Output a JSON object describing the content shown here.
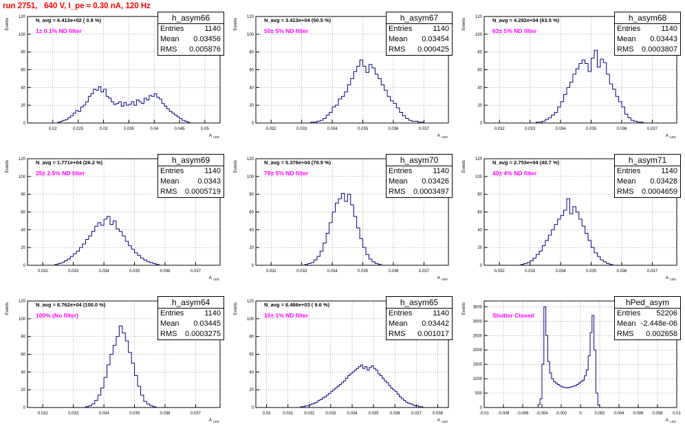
{
  "canvas_title": "run 2751,   640 V, I_pe ≈ 0.30 nA, 120 Hz",
  "colors": {
    "title": "#ff0000",
    "histogram": "#000080",
    "annotation": "#ff00ff",
    "grid": "#000000"
  },
  "stat_labels": {
    "entries": "Entries",
    "mean": "Mean",
    "rms": "RMS"
  },
  "ylabel_text": "Events",
  "xlabel_text": "A",
  "xlabel_sub": "LED",
  "chart_data": [
    {
      "type": "histogram",
      "hist_name": "h_asym66",
      "navg": "N_avg = 6.413e+02 ( 0.9 %)",
      "annotation": "1± 0.1% ND filter",
      "stats": {
        "entries": "1140",
        "mean": "0.03456",
        "rms": "0.005876"
      },
      "xlim": [
        0.015,
        0.053
      ],
      "ylim": [
        0,
        120
      ],
      "x_ticks": [
        0.02,
        0.025,
        0.03,
        0.035,
        0.04,
        0.045,
        0.05
      ],
      "x_tick_labels": [
        "0.02",
        "0.025",
        "0.03",
        "0.035",
        "0.04",
        "0.045",
        "0.05"
      ],
      "y_ticks": [
        0,
        20,
        40,
        60,
        80,
        100,
        120
      ],
      "bins": {
        "start": 0.021,
        "width": 0.0005,
        "counts": [
          1,
          2,
          3,
          4,
          6,
          8,
          11,
          14,
          13,
          18,
          20,
          24,
          30,
          33,
          38,
          37,
          41,
          35,
          38,
          30,
          28,
          24,
          21,
          22,
          24,
          19,
          23,
          20,
          21,
          24,
          20,
          26,
          24,
          22,
          28,
          26,
          31,
          30,
          33,
          29,
          27,
          22,
          19,
          16,
          13,
          11,
          9,
          7,
          5,
          3,
          2,
          1
        ]
      }
    },
    {
      "type": "histogram",
      "hist_name": "h_asym67",
      "navg": "N_avg = 3.413e+04 (50.5 %)",
      "annotation": "50± 5% ND filter",
      "stats": {
        "entries": "1140",
        "mean": "0.03454",
        "rms": "0.000425"
      },
      "xlim": [
        0.0315,
        0.0378
      ],
      "ylim": [
        0,
        120
      ],
      "x_ticks": [
        0.032,
        0.033,
        0.034,
        0.035,
        0.036,
        0.037
      ],
      "x_tick_labels": [
        "0.032",
        "0.033",
        "0.034",
        "0.035",
        "0.036",
        "0.037"
      ],
      "y_ticks": [
        0,
        20,
        40,
        60,
        80,
        100,
        120
      ],
      "bins": {
        "start": 0.0333,
        "width": 0.0001,
        "counts": [
          1,
          1,
          2,
          3,
          5,
          9,
          12,
          18,
          20,
          27,
          30,
          35,
          43,
          50,
          58,
          64,
          71,
          64,
          57,
          66,
          62,
          55,
          50,
          43,
          37,
          30,
          25,
          22,
          17,
          12,
          8,
          5,
          3,
          2,
          2,
          1,
          1
        ]
      }
    },
    {
      "type": "histogram",
      "hist_name": "h_asym68",
      "navg": "N_avg = 4.292e+04 (63.5 %)",
      "annotation": "63± 5% ND filter",
      "stats": {
        "entries": "1140",
        "mean": "0.03443",
        "rms": "0.0003807"
      },
      "xlim": [
        0.0315,
        0.0378
      ],
      "ylim": [
        0,
        120
      ],
      "x_ticks": [
        0.032,
        0.033,
        0.034,
        0.035,
        0.036,
        0.037
      ],
      "x_tick_labels": [
        "0.032",
        "0.033",
        "0.034",
        "0.035",
        "0.036",
        "0.037"
      ],
      "y_ticks": [
        0,
        20,
        40,
        60,
        80,
        100,
        120
      ],
      "bins": {
        "start": 0.0332,
        "width": 0.0001,
        "counts": [
          1,
          1,
          2,
          4,
          6,
          9,
          12,
          18,
          24,
          32,
          40,
          46,
          55,
          61,
          67,
          71,
          67,
          58,
          73,
          82,
          63,
          72,
          68,
          55,
          44,
          38,
          30,
          24,
          18,
          10,
          6,
          3,
          2,
          1,
          1
        ]
      }
    },
    {
      "type": "histogram",
      "hist_name": "h_asym69",
      "navg": "N_avg = 1.771e+04 (26.2 %)",
      "annotation": "25± 2.5% ND filter",
      "stats": {
        "entries": "1140",
        "mean": "0.0343",
        "rms": "0.0005719"
      },
      "xlim": [
        0.0315,
        0.0378
      ],
      "ylim": [
        0,
        120
      ],
      "x_ticks": [
        0.032,
        0.033,
        0.034,
        0.035,
        0.036,
        0.037
      ],
      "x_tick_labels": [
        "0.032",
        "0.033",
        "0.034",
        "0.035",
        "0.036",
        "0.037"
      ],
      "y_ticks": [
        0,
        20,
        40,
        60,
        80,
        100,
        120
      ],
      "bins": {
        "start": 0.0324,
        "width": 0.0001,
        "counts": [
          1,
          2,
          3,
          5,
          7,
          10,
          13,
          16,
          20,
          24,
          29,
          33,
          38,
          44,
          48,
          45,
          52,
          55,
          46,
          50,
          41,
          38,
          33,
          27,
          22,
          18,
          14,
          11,
          8,
          6,
          4,
          3,
          2,
          1
        ]
      }
    },
    {
      "type": "histogram",
      "hist_name": "h_asym70",
      "navg": "N_avg = 5.376e+04 (79.5 %)",
      "annotation": "79± 5% ND filter",
      "stats": {
        "entries": "1140",
        "mean": "0.03426",
        "rms": "0.0003497"
      },
      "xlim": [
        0.0315,
        0.0378
      ],
      "ylim": [
        0,
        120
      ],
      "x_ticks": [
        0.032,
        0.033,
        0.034,
        0.035,
        0.036,
        0.037
      ],
      "x_tick_labels": [
        "0.032",
        "0.033",
        "0.034",
        "0.035",
        "0.036",
        "0.037"
      ],
      "y_ticks": [
        0,
        20,
        40,
        60,
        80,
        100,
        120
      ],
      "bins": {
        "start": 0.0331,
        "width": 0.0001,
        "counts": [
          1,
          2,
          3,
          6,
          10,
          16,
          25,
          36,
          48,
          60,
          70,
          75,
          81,
          72,
          80,
          68,
          55,
          42,
          30,
          20,
          12,
          7,
          4,
          2,
          1
        ]
      }
    },
    {
      "type": "histogram",
      "hist_name": "h_asym71",
      "navg": "N_avg = 2.753e+04 (40.7 %)",
      "annotation": "40± 4% ND filter",
      "stats": {
        "entries": "1140",
        "mean": "0.03428",
        "rms": "0.0004659"
      },
      "xlim": [
        0.0315,
        0.0378
      ],
      "ylim": [
        0,
        120
      ],
      "x_ticks": [
        0.032,
        0.033,
        0.034,
        0.035,
        0.036,
        0.037
      ],
      "x_tick_labels": [
        "0.032",
        "0.033",
        "0.034",
        "0.035",
        "0.036",
        "0.037"
      ],
      "y_ticks": [
        0,
        20,
        40,
        60,
        80,
        100,
        120
      ],
      "bins": {
        "start": 0.0327,
        "width": 0.0001,
        "counts": [
          1,
          2,
          3,
          5,
          8,
          12,
          16,
          22,
          28,
          34,
          40,
          46,
          52,
          56,
          62,
          75,
          58,
          66,
          60,
          52,
          44,
          36,
          28,
          20,
          14,
          10,
          6,
          4,
          2,
          1
        ]
      }
    },
    {
      "type": "histogram",
      "hist_name": "h_asym64",
      "navg": "N_avg = 6.762e+04 (100.0 %)",
      "annotation": "100% (No filter)",
      "stats": {
        "entries": "1140",
        "mean": "0.03445",
        "rms": "0.0003275"
      },
      "xlim": [
        0.0315,
        0.0378
      ],
      "ylim": [
        0,
        120
      ],
      "x_ticks": [
        0.032,
        0.033,
        0.034,
        0.035,
        0.036,
        0.037
      ],
      "x_tick_labels": [
        "0.032",
        "0.033",
        "0.034",
        "0.035",
        "0.036",
        "0.037"
      ],
      "y_ticks": [
        0,
        20,
        40,
        60,
        80,
        100,
        120
      ],
      "bins": {
        "start": 0.0334,
        "width": 0.0001,
        "counts": [
          1,
          2,
          4,
          8,
          14,
          22,
          34,
          48,
          60,
          70,
          80,
          92,
          84,
          75,
          62,
          50,
          36,
          24,
          14,
          7,
          4,
          2,
          1
        ]
      }
    },
    {
      "type": "histogram",
      "hist_name": "h_asym65",
      "navg": "N_avg = 6.466e+03 ( 9.6 %)",
      "annotation": "10± 1% ND filter",
      "stats": {
        "entries": "1140",
        "mean": "0.03442",
        "rms": "0.001017"
      },
      "xlim": [
        0.0295,
        0.0385
      ],
      "ylim": [
        0,
        120
      ],
      "x_ticks": [
        0.03,
        0.031,
        0.032,
        0.033,
        0.034,
        0.035,
        0.036,
        0.037,
        0.038
      ],
      "x_tick_labels": [
        "0.03",
        "0.031",
        "0.032",
        "0.033",
        "0.034",
        "0.035",
        "0.036",
        "0.037",
        "0.038"
      ],
      "y_ticks": [
        0,
        20,
        40,
        60,
        80,
        100,
        120
      ],
      "bins": {
        "start": 0.0316,
        "width": 0.0001,
        "counts": [
          1,
          1,
          2,
          2,
          3,
          4,
          5,
          6,
          8,
          9,
          11,
          12,
          14,
          16,
          18,
          20,
          22,
          24,
          26,
          28,
          30,
          33,
          36,
          38,
          40,
          42,
          44,
          46,
          48,
          44,
          46,
          42,
          45,
          47,
          44,
          42,
          38,
          36,
          33,
          30,
          28,
          25,
          22,
          20,
          18,
          15,
          12,
          10,
          8,
          6,
          5,
          4,
          3,
          2,
          2,
          1,
          1
        ]
      }
    },
    {
      "type": "histogram",
      "hist_name": "hPed_asym",
      "navg": "",
      "annotation": "Shutter Closed",
      "stats": {
        "entries": "52206",
        "mean": "-2.448e-06",
        "rms": "0.002658"
      },
      "xlim": [
        -0.01,
        0.01
      ],
      "ylim": [
        0,
        3700
      ],
      "x_ticks": [
        -0.01,
        -0.008,
        -0.006,
        -0.004,
        -0.002,
        0,
        0.002,
        0.004,
        0.006,
        0.008,
        0.01
      ],
      "x_tick_labels": [
        "-0.01",
        "-0.008",
        "-0.006",
        "-0.004",
        "-0.002",
        "0",
        "0.002",
        "0.004",
        "0.006",
        "0.008",
        "0.01"
      ],
      "y_ticks": [
        0,
        500,
        1000,
        1500,
        2000,
        2500,
        3000,
        3500
      ],
      "bins": {
        "start": -0.0044,
        "width": 0.0002,
        "counts": [
          100,
          300,
          1500,
          3500,
          2500,
          1600,
          1200,
          1000,
          900,
          850,
          800,
          760,
          720,
          700,
          690,
          680,
          700,
          720,
          740,
          760,
          800,
          850,
          900,
          950,
          1100,
          1300,
          1800,
          2600,
          3200,
          2000,
          500,
          80
        ]
      }
    }
  ]
}
